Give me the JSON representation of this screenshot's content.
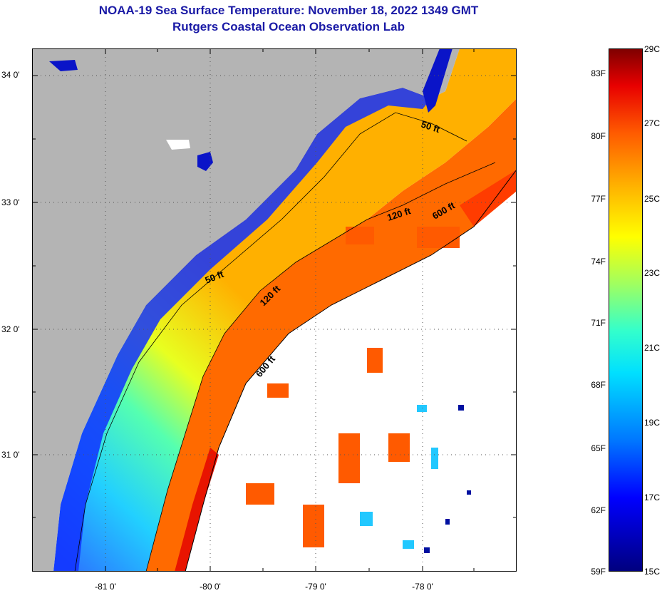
{
  "title": {
    "line1": "NOAA-19 Sea Surface Temperature:  November 18, 2022 1349 GMT",
    "line2": "Rutgers Coastal Ocean Observation Lab"
  },
  "map": {
    "lat_labels": [
      "34 0'",
      "33 0'",
      "32 0'",
      "31 0'"
    ],
    "lon_labels": [
      "-81 0'",
      "-80 0'",
      "-79 0'",
      "-78 0'"
    ],
    "contour_labels": {
      "ft50_north": "50 ft",
      "ft50_south": "50 ft",
      "ft120_north": "120 ft",
      "ft120_south": "120 ft",
      "ft600_north": "600 ft",
      "ft600_south": "600 ft"
    },
    "colors": {
      "land": "#b4b4b4",
      "cloud": "#ffffff",
      "lake": "#0a14c8"
    }
  },
  "colorbar": {
    "celsius": [
      "29C",
      "27C",
      "25C",
      "23C",
      "21C",
      "19C",
      "17C",
      "15C"
    ],
    "fahrenheit": [
      "83F",
      "80F",
      "77F",
      "74F",
      "71F",
      "68F",
      "65F",
      "62F",
      "59F"
    ]
  }
}
